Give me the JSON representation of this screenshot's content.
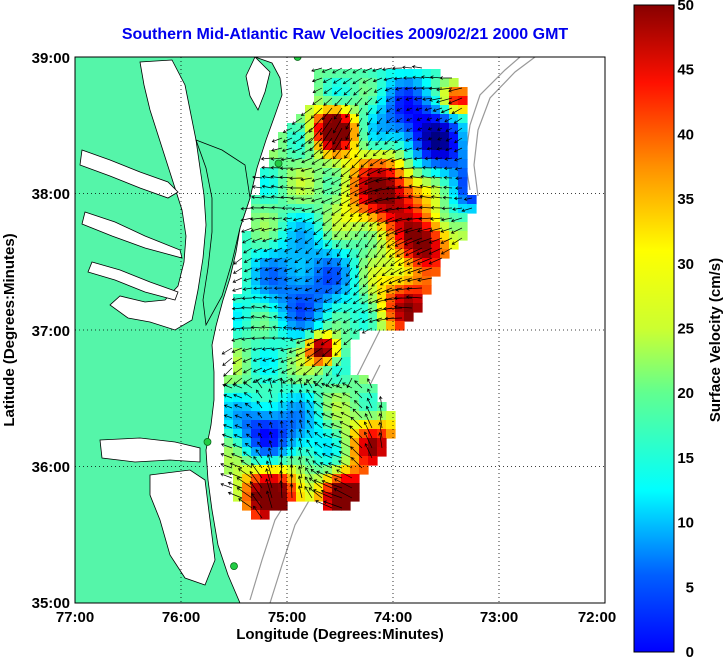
{
  "map": {
    "title": "Southern Mid-Atlantic Raw Velocities 2009/02/21 2000 GMT",
    "title_color": "#0000ee",
    "xlabel": "Longitude (Degrees:Minutes)",
    "ylabel": "Latitude (Degrees:Minutes)",
    "x_ticks": [
      "77:00",
      "76:00",
      "75:00",
      "74:00",
      "73:00",
      "72:00"
    ],
    "y_ticks": [
      "39:00",
      "38:00",
      "37:00",
      "36:00",
      "35:00"
    ],
    "lon_range": [
      -77,
      -72
    ],
    "lat_range": [
      35,
      39
    ],
    "land_color": "#55f5a9",
    "grid": "dotted"
  },
  "colorbar": {
    "label": "Surface Velocity (cm/s)",
    "ticks": [
      "50",
      "45",
      "40",
      "35",
      "30",
      "25",
      "20",
      "15",
      "10",
      "5",
      "0"
    ],
    "range": [
      0,
      50
    ],
    "colormap": "jet"
  },
  "stations": [
    {
      "lon": -74.9,
      "lat": 39.0
    },
    {
      "lon": -75.08,
      "lat": 38.22
    },
    {
      "lon": -75.75,
      "lat": 36.18
    },
    {
      "lon": -75.5,
      "lat": 35.27
    }
  ]
}
